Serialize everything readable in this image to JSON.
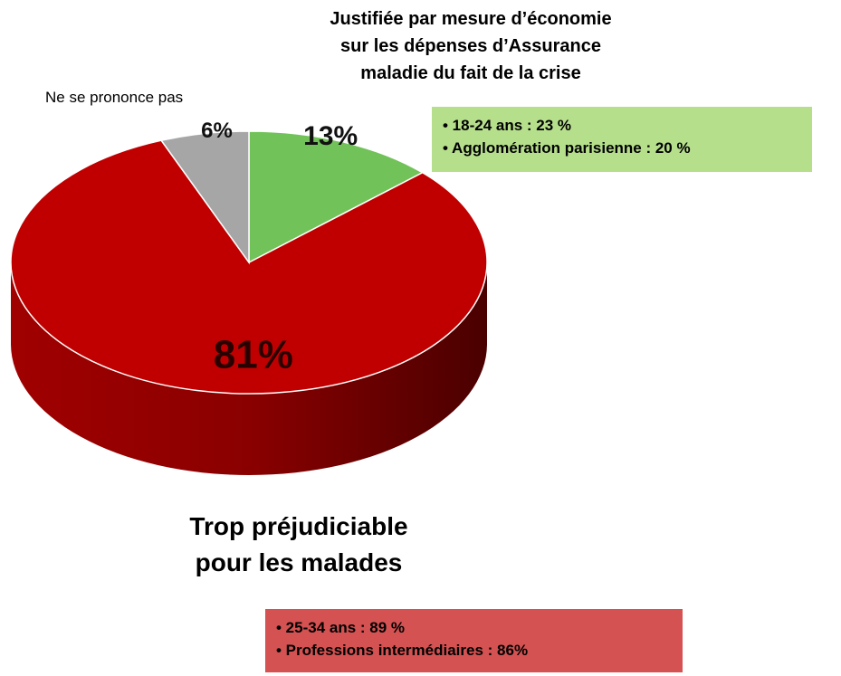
{
  "chart_data": {
    "type": "pie",
    "categories": [
      "Justifiée par mesure d’économie\nsur les dépenses d’Assurance\nmaladie du fait de la crise",
      "Trop préjudiciable\npour les malades",
      "Ne se prononce pas"
    ],
    "values": [
      13,
      81,
      6
    ],
    "value_labels": [
      "13%",
      "81%",
      "6%"
    ],
    "colors": [
      "#72c25a",
      "#c00000",
      "#a6a6a6"
    ],
    "annotations": [
      {
        "lines": [
          "• 18-24 ans : 23 %",
          "• Agglomération parisienne : 20 %"
        ],
        "color": "#b6df8c"
      },
      {
        "lines": [
          "• 25-34 ans : 89 %",
          "• Professions intermédiaires : 86%"
        ],
        "color": "#d45252"
      }
    ]
  }
}
